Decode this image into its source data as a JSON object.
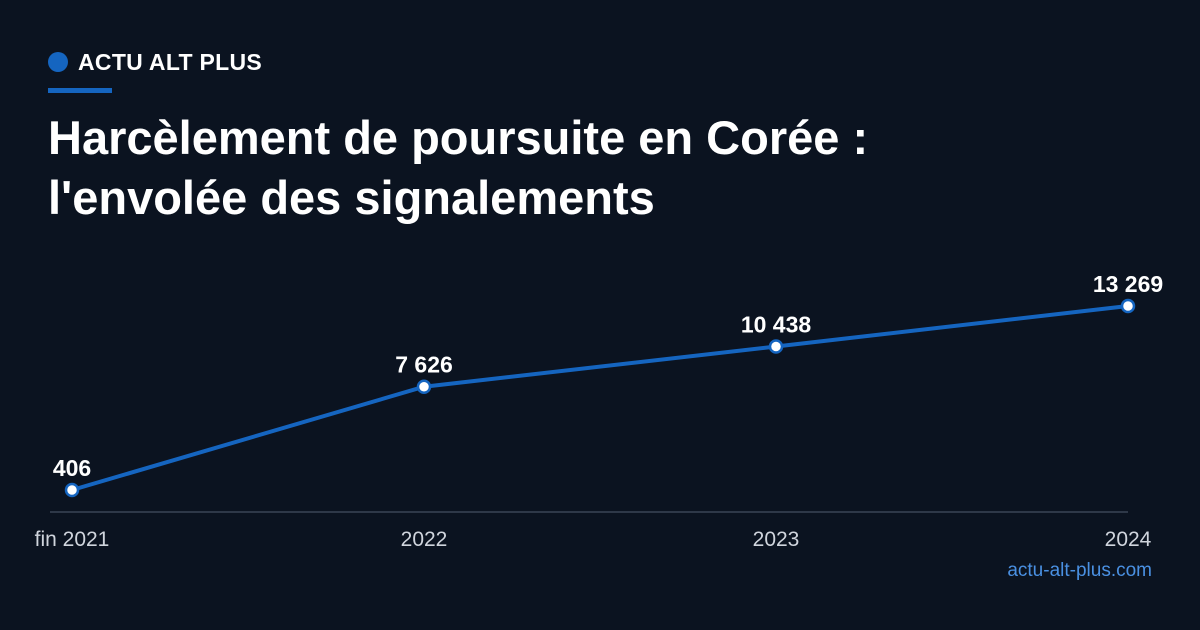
{
  "brand": {
    "name": "ACTU ALT PLUS",
    "accent_color": "#1565c0"
  },
  "title": "Harcèlement de poursuite en Corée :\nl'envolée des signalements",
  "source": "actu-alt-plus.com",
  "chart_data": {
    "type": "line",
    "categories": [
      "fin 2021",
      "2022",
      "2023",
      "2024"
    ],
    "values": [
      406,
      7626,
      10438,
      13269
    ],
    "data_labels": [
      "406",
      "7 626",
      "10 438",
      "13 269"
    ],
    "ylim": [
      0,
      13269
    ],
    "grid": false,
    "legend": "none",
    "line_color": "#1565c0",
    "marker_fill": "#ffffff",
    "axis_color": "#3a4456"
  }
}
